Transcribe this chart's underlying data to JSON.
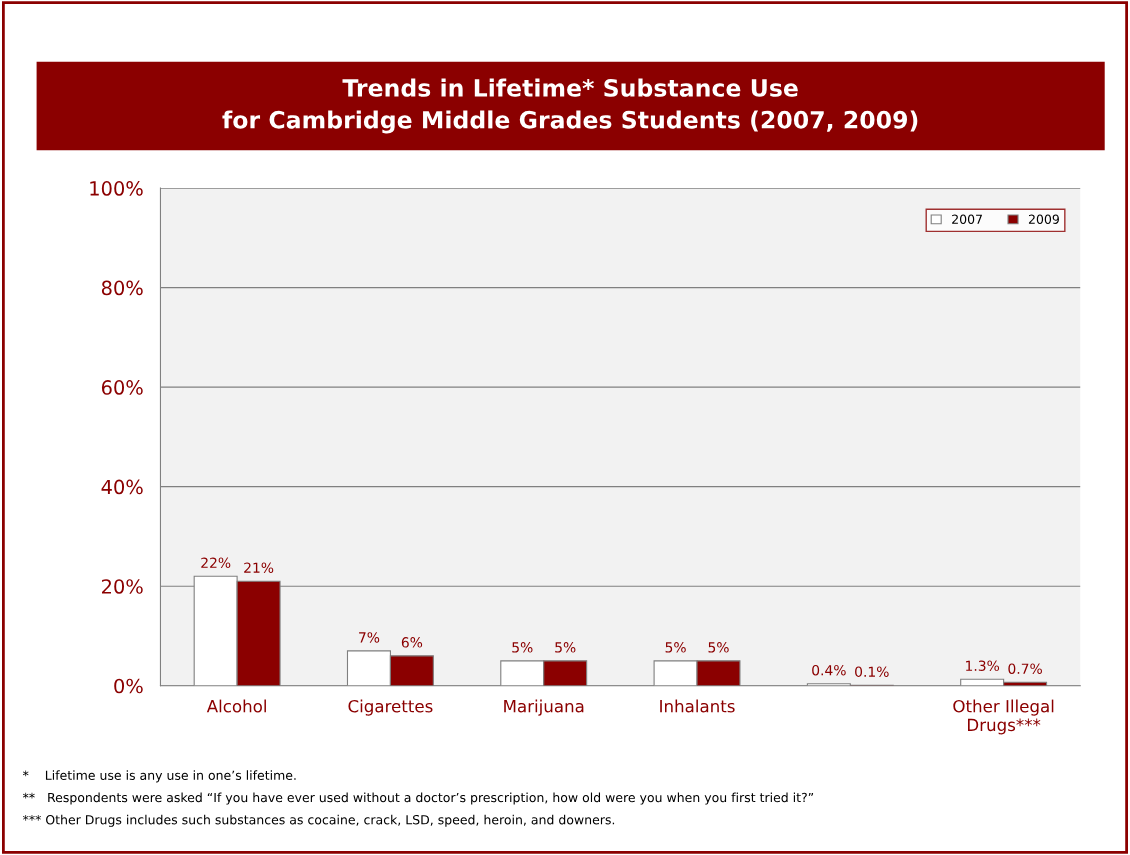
{
  "chart_data": {
    "type": "bar",
    "title": "Trends in Lifetime* Substance Use\nfor Cambridge Middle Grades Students (2007, 2009)",
    "categories": [
      "Alcohol",
      "Cigarettes",
      "Marijuana",
      "Inhalants",
      null,
      "Other Illegal\nDrugs***"
    ],
    "series": [
      {
        "name": "2007",
        "color": "#ffffff",
        "values": [
          22,
          7,
          5,
          5,
          0.4,
          1.3
        ],
        "value_labels": [
          "22%",
          "7%",
          "5%",
          "5%",
          "0.4%",
          "1.3%"
        ]
      },
      {
        "name": "2009",
        "color": "#8b0000",
        "values": [
          21,
          6,
          5,
          5,
          0.1,
          0.7
        ],
        "value_labels": [
          "21%",
          "6%",
          "5%",
          "5%",
          "0.1%",
          "0.7%"
        ]
      }
    ],
    "ylim": [
      0,
      100
    ],
    "yticks": [
      {
        "value": 0,
        "label": "0%"
      },
      {
        "value": 20,
        "label": "20%"
      },
      {
        "value": 40,
        "label": "40%"
      },
      {
        "value": 60,
        "label": "60%"
      },
      {
        "value": 80,
        "label": "80%"
      },
      {
        "value": 100,
        "label": "100%"
      }
    ],
    "grid": "y",
    "legend": "top right",
    "annotations": [
      "*    Lifetime use is any use in one’s lifetime.",
      "**   Respondents were asked “If you have ever used without a doctor’s prescription, how old were you when you first tried it?”",
      "*** Other Drugs includes such substances as cocaine, crack, LSD, speed, heroin, and downers."
    ]
  }
}
